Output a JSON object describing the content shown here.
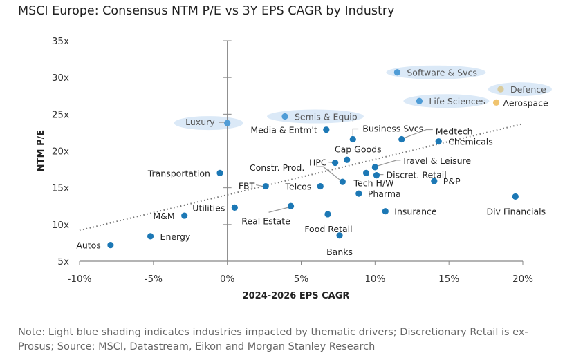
{
  "title": "MSCI Europe: Consensus NTM P/E vs 3Y EPS CAGR by Industry",
  "note": "Note: Light blue shading indicates industries impacted by thematic drivers; Discretionary Retail is ex-Prosus; Source: MSCI, Datastream, Eikon and Morgan Stanley Research",
  "chart_data": {
    "type": "scatter",
    "title": "MSCI Europe: Consensus NTM P/E vs 3Y EPS CAGR by Industry",
    "xlabel": "2024-2026 EPS CAGR",
    "ylabel": "NTM P/E",
    "xlim": [
      -10,
      20
    ],
    "ylim": [
      5,
      35
    ],
    "xticks": [
      -10,
      -5,
      0,
      5,
      10,
      15,
      20
    ],
    "xtick_labels": [
      "-10%",
      "-5%",
      "0%",
      "5%",
      "10%",
      "15%",
      "20%"
    ],
    "yticks": [
      5,
      10,
      15,
      20,
      25,
      30,
      35
    ],
    "ytick_labels": [
      "5x",
      "10x",
      "15x",
      "20x",
      "25x",
      "30x",
      "35x"
    ],
    "trendline": {
      "style": "dotted",
      "x": [
        -10,
        20
      ],
      "y": [
        9.2,
        23.7
      ]
    },
    "colors": {
      "default": "#1c78b5",
      "thematic": "#4f9cd6",
      "shading": "#dbe9f7",
      "defence": "#d9cb9c",
      "aerospace": "#f0c46f"
    },
    "points": [
      {
        "label": "Autos",
        "x": -7.9,
        "y": 7.2
      },
      {
        "label": "Energy",
        "x": -5.2,
        "y": 8.4
      },
      {
        "label": "M&M",
        "x": -2.9,
        "y": 11.2
      },
      {
        "label": "Transportation",
        "x": -0.5,
        "y": 17.0
      },
      {
        "label": "Luxury",
        "x": 0.0,
        "y": 23.8,
        "thematic": true
      },
      {
        "label": "Utilities",
        "x": 0.5,
        "y": 12.3
      },
      {
        "label": "FBT",
        "x": 2.6,
        "y": 15.2
      },
      {
        "label": "Real Estate",
        "x": 4.3,
        "y": 12.5
      },
      {
        "label": "Semis & Equip",
        "x": 3.9,
        "y": 24.7,
        "thematic": true
      },
      {
        "label": "Media & Entm't",
        "x": 6.7,
        "y": 22.9
      },
      {
        "label": "Telcos",
        "x": 6.3,
        "y": 15.2
      },
      {
        "label": "Food Retail",
        "x": 6.8,
        "y": 11.4
      },
      {
        "label": "Banks",
        "x": 7.6,
        "y": 8.5
      },
      {
        "label": "Constr. Prod.",
        "x": 7.8,
        "y": 15.8
      },
      {
        "label": "HPC",
        "x": 7.3,
        "y": 18.4
      },
      {
        "label": "Cap Goods",
        "x": 8.1,
        "y": 18.8
      },
      {
        "label": "Business Svcs",
        "x": 8.5,
        "y": 21.6
      },
      {
        "label": "Pharma",
        "x": 8.9,
        "y": 14.2
      },
      {
        "label": "Tech H/W",
        "x": 9.4,
        "y": 17.0
      },
      {
        "label": "Travel & Leisure",
        "x": 10.0,
        "y": 17.8
      },
      {
        "label": "Discret. Retail",
        "x": 10.1,
        "y": 16.7
      },
      {
        "label": "Insurance",
        "x": 10.7,
        "y": 11.8
      },
      {
        "label": "Software & Svcs",
        "x": 11.5,
        "y": 30.7,
        "thematic": true
      },
      {
        "label": "Medtech",
        "x": 11.8,
        "y": 21.6
      },
      {
        "label": "Life Sciences",
        "x": 13.0,
        "y": 26.8,
        "thematic": true
      },
      {
        "label": "P&P",
        "x": 14.0,
        "y": 15.9
      },
      {
        "label": "Chemicals",
        "x": 14.3,
        "y": 21.3
      },
      {
        "label": "Aerospace",
        "x": 18.2,
        "y": 26.6,
        "color_key": "aerospace"
      },
      {
        "label": "Defence",
        "x": 18.5,
        "y": 28.4,
        "thematic": true,
        "color_key": "defence"
      },
      {
        "label": "Div Financials",
        "x": 19.5,
        "y": 13.8
      }
    ]
  }
}
